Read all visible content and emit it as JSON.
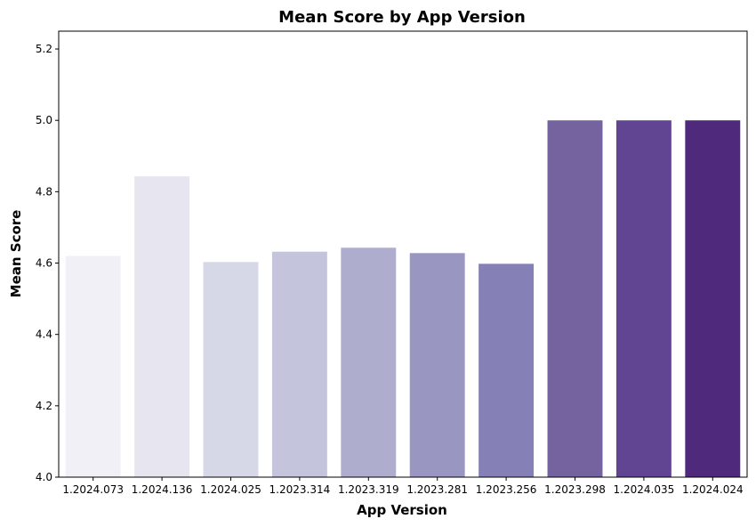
{
  "chart_data": {
    "type": "bar",
    "title": "Mean Score by App Version",
    "xlabel": "App Version",
    "ylabel": "Mean Score",
    "ylim": [
      4.0,
      5.25
    ],
    "yticks": [
      "4.0",
      "4.2",
      "4.4",
      "4.6",
      "4.8",
      "5.0",
      "5.2"
    ],
    "categories": [
      "1.2024.073",
      "1.2024.136",
      "1.2024.025",
      "1.2023.314",
      "1.2023.319",
      "1.2023.281",
      "1.2023.256",
      "1.2023.298",
      "1.2024.035",
      "1.2024.024"
    ],
    "values": [
      4.62,
      4.843,
      4.603,
      4.632,
      4.643,
      4.628,
      4.598,
      5.0,
      5.0,
      5.0
    ],
    "colors": [
      "#f1f0f6",
      "#e6e5f0",
      "#d6d7e7",
      "#c4c4dd",
      "#aeadcd",
      "#9997c2",
      "#8581b6",
      "#7563a0",
      "#624592",
      "#4f2a7c"
    ],
    "grid": false,
    "legend": "none"
  }
}
